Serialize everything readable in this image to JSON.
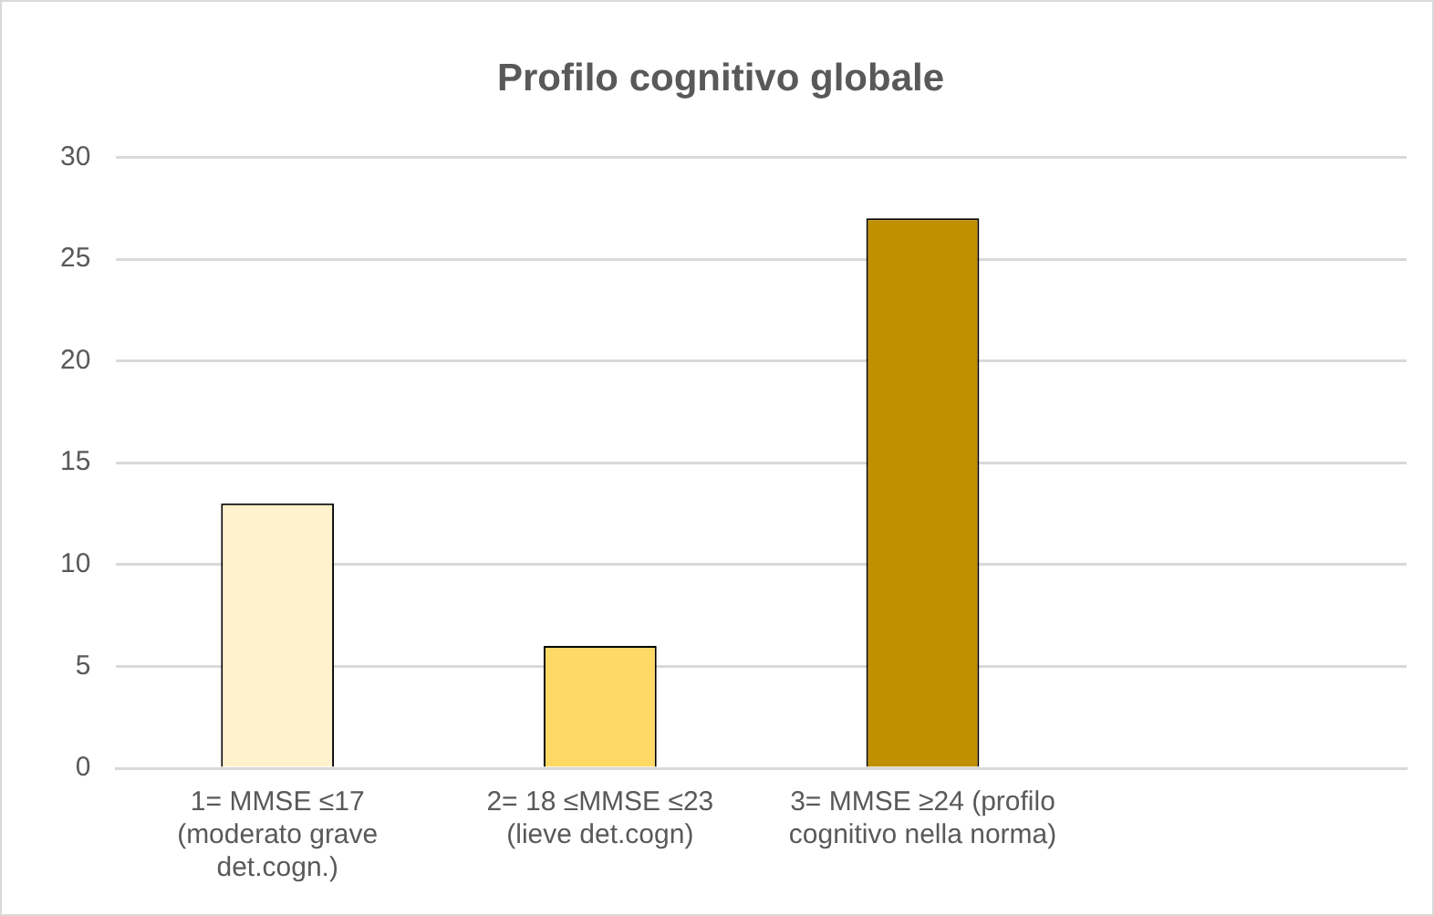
{
  "chart_data": {
    "type": "bar",
    "title": "Profilo cognitivo globale",
    "categories": [
      "1= MMSE ≤17 (moderato grave det.cogn.)",
      "2= 18 ≤MMSE ≤23 (lieve det.cogn)",
      "3= MMSE ≥24 (profilo cognitivo nella norma)",
      null
    ],
    "values": [
      13,
      6,
      27,
      null
    ],
    "colors": [
      "#fff2cc",
      "#ffd966",
      "#bf9000",
      "#bf9000"
    ],
    "ylim": [
      0,
      30
    ],
    "yticks": [
      0,
      5,
      10,
      15,
      20,
      25,
      30
    ],
    "grid": "y",
    "legend": false
  }
}
